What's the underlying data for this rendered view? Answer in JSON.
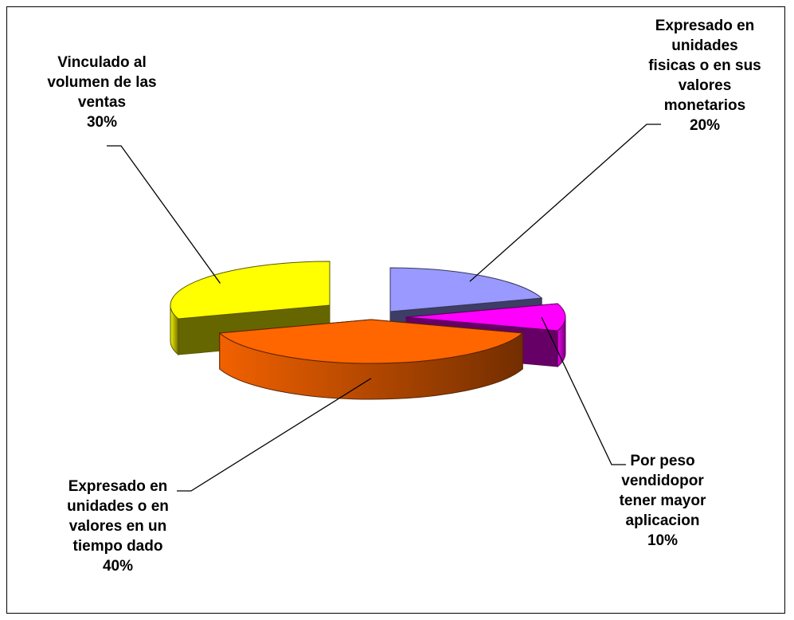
{
  "chart_data": {
    "type": "pie",
    "title": "",
    "style": "3d-exploded",
    "slices": [
      {
        "label": [
          "Expresado en",
          "unidades",
          "fisicas o en sus",
          "valores",
          "monetarios"
        ],
        "percent_label": "20%",
        "value": 20,
        "color": "#9999FF"
      },
      {
        "label": [
          "Por peso",
          "vendidopor",
          "tener mayor",
          "aplicacion"
        ],
        "percent_label": "10%",
        "value": 10,
        "color": "#FF00FF"
      },
      {
        "label": [
          "Expresado en",
          "unidades o en",
          "valores en un",
          "tiempo dado"
        ],
        "percent_label": "40%",
        "value": 40,
        "color": "#FF6600"
      },
      {
        "label": [
          "Vinculado al",
          "volumen de las",
          "ventas"
        ],
        "percent_label": "30%",
        "value": 30,
        "color": "#FFFF00"
      }
    ]
  }
}
